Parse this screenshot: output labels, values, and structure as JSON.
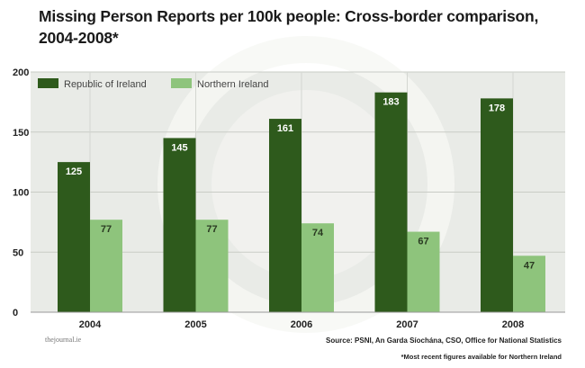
{
  "chart_data": {
    "type": "bar",
    "title": "Missing Person Reports per 100k people: Cross-border comparison, 2004-2008*",
    "categories": [
      "2004",
      "2005",
      "2006",
      "2007",
      "2008"
    ],
    "series": [
      {
        "name": "Republic of Ireland",
        "values": [
          125,
          145,
          161,
          183,
          178
        ],
        "color": "#2e5a1c"
      },
      {
        "name": "Northern Ireland",
        "values": [
          77,
          77,
          74,
          67,
          47
        ],
        "color": "#8ec47c"
      }
    ],
    "ylim": [
      0,
      200
    ],
    "yticks": [
      0,
      50,
      100,
      150,
      200
    ],
    "grid": true,
    "legend": "top-left",
    "background": "#e9ebe7"
  },
  "footer": {
    "brand": "thejournal.ie",
    "source": "Source: PSNI, An Garda Síochána, CSO, Office for National Statistics",
    "note": "*Most recent figures available for Northern Ireland"
  }
}
